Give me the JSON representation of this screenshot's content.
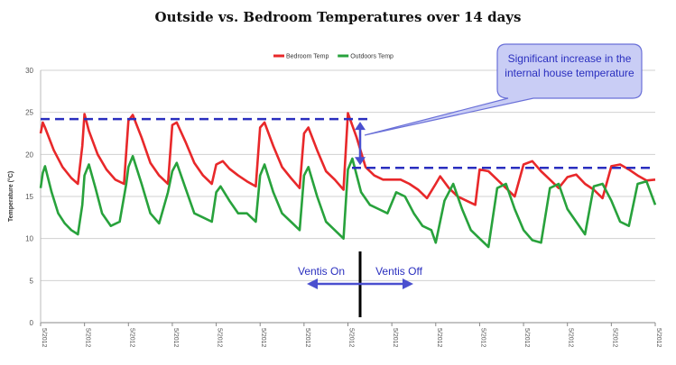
{
  "chart_data": {
    "type": "line",
    "title": "Outside vs. Bedroom Temperatures over 14 days",
    "ylabel": "Temperature (°C)",
    "ylim": [
      0,
      30
    ],
    "yticks": [
      0,
      5,
      10,
      15,
      20,
      25,
      30
    ],
    "x_tick_labels": [
      "5/2012",
      "5/2012",
      "5/2012",
      "5/2012",
      "5/2012",
      "5/2012",
      "5/2012",
      "5/2012",
      "5/2012",
      "5/2012",
      "5/2012",
      "5/2012",
      "5/2012",
      "5/2012",
      "5/2012"
    ],
    "legend_position": "top-center",
    "grid": true,
    "series": [
      {
        "name": "Bedroom Temp",
        "color": "#e8282a",
        "x": [
          0,
          0.05,
          0.1,
          0.3,
          0.5,
          0.7,
          0.85,
          0.95,
          1.0,
          1.1,
          1.3,
          1.5,
          1.7,
          1.9,
          2.0,
          2.1,
          2.3,
          2.5,
          2.7,
          2.9,
          3.0,
          3.1,
          3.3,
          3.5,
          3.7,
          3.9,
          4.0,
          4.15,
          4.3,
          4.5,
          4.7,
          4.9,
          5.0,
          5.1,
          5.3,
          5.5,
          5.7,
          5.9,
          6.0,
          6.1,
          6.3,
          6.5,
          6.7,
          6.9,
          7.0,
          7.2,
          7.4,
          7.6,
          7.8,
          8.0,
          8.2,
          8.4,
          8.6,
          8.8,
          9.0,
          9.1,
          9.3,
          9.5,
          9.7,
          9.9,
          10.0,
          10.2,
          10.4,
          10.6,
          10.8,
          11.0,
          11.2,
          11.4,
          11.6,
          11.8,
          12.0,
          12.2,
          12.4,
          12.6,
          12.8,
          13.0,
          13.2,
          13.4,
          13.6,
          13.8,
          14.0
        ],
        "y": [
          22.5,
          23.8,
          23.2,
          20.5,
          18.5,
          17.2,
          16.5,
          21.0,
          24.8,
          22.8,
          20.0,
          18.2,
          17.0,
          16.5,
          24.0,
          24.7,
          22.0,
          19.0,
          17.5,
          16.5,
          23.5,
          23.8,
          21.5,
          19.0,
          17.5,
          16.5,
          18.8,
          19.2,
          18.3,
          17.5,
          16.8,
          16.2,
          23.2,
          23.8,
          21.0,
          18.5,
          17.2,
          16.0,
          22.5,
          23.2,
          20.5,
          18.0,
          17.0,
          15.8,
          24.9,
          22.0,
          18.5,
          17.5,
          17.0,
          17.0,
          17.0,
          16.5,
          15.8,
          14.8,
          16.5,
          17.4,
          16.0,
          15.0,
          14.5,
          14.0,
          18.2,
          18.0,
          17.0,
          16.0,
          15.0,
          18.8,
          19.2,
          18.0,
          17.0,
          16.0,
          17.3,
          17.6,
          16.5,
          15.8,
          14.8,
          18.6,
          18.8,
          18.2,
          17.5,
          16.9,
          17.0
        ]
      },
      {
        "name": "Outdoors Temp",
        "color": "#28a23c",
        "x": [
          0,
          0.05,
          0.1,
          0.25,
          0.4,
          0.55,
          0.7,
          0.85,
          0.95,
          1.0,
          1.1,
          1.25,
          1.4,
          1.6,
          1.8,
          1.95,
          2.0,
          2.1,
          2.3,
          2.5,
          2.7,
          2.9,
          3.0,
          3.1,
          3.3,
          3.5,
          3.7,
          3.9,
          4.0,
          4.1,
          4.3,
          4.5,
          4.7,
          4.9,
          5.0,
          5.1,
          5.3,
          5.5,
          5.7,
          5.9,
          6.0,
          6.1,
          6.3,
          6.5,
          6.7,
          6.9,
          7.0,
          7.1,
          7.3,
          7.5,
          7.7,
          7.9,
          8.1,
          8.3,
          8.5,
          8.7,
          8.9,
          9.0,
          9.2,
          9.4,
          9.6,
          9.8,
          10.0,
          10.2,
          10.4,
          10.6,
          10.8,
          11.0,
          11.2,
          11.4,
          11.6,
          11.8,
          12.0,
          12.2,
          12.4,
          12.6,
          12.8,
          13.0,
          13.2,
          13.4,
          13.6,
          13.8,
          14.0
        ],
        "y": [
          16.0,
          17.8,
          18.6,
          15.5,
          13.0,
          11.8,
          11.0,
          10.5,
          14.0,
          17.5,
          18.8,
          16.0,
          13.0,
          11.5,
          12.0,
          16.5,
          18.5,
          19.8,
          16.5,
          13.0,
          11.8,
          15.5,
          18.0,
          19.0,
          16.0,
          13.0,
          12.5,
          12.0,
          15.5,
          16.2,
          14.5,
          13.0,
          13.0,
          12.0,
          17.5,
          18.8,
          15.5,
          13.0,
          12.0,
          11.0,
          17.5,
          18.5,
          15.0,
          12.0,
          11.0,
          10.0,
          18.2,
          19.5,
          15.5,
          14.0,
          13.5,
          13.0,
          15.5,
          15.0,
          13.0,
          11.5,
          11.0,
          9.5,
          14.5,
          16.5,
          13.5,
          11.0,
          10.0,
          9.0,
          16.0,
          16.5,
          13.5,
          11.0,
          9.8,
          9.5,
          16.0,
          16.5,
          13.5,
          12.0,
          10.5,
          16.2,
          16.5,
          14.5,
          12.0,
          11.5,
          16.5,
          16.8,
          14.0
        ]
      }
    ],
    "annotations": {
      "callout": [
        "Significant increase in the",
        "internal house temperature"
      ],
      "ventis_on": "Ventis On",
      "ventis_off": "Ventis Off",
      "upper_dashed_level": 24.2,
      "lower_dashed_level": 18.4
    }
  }
}
